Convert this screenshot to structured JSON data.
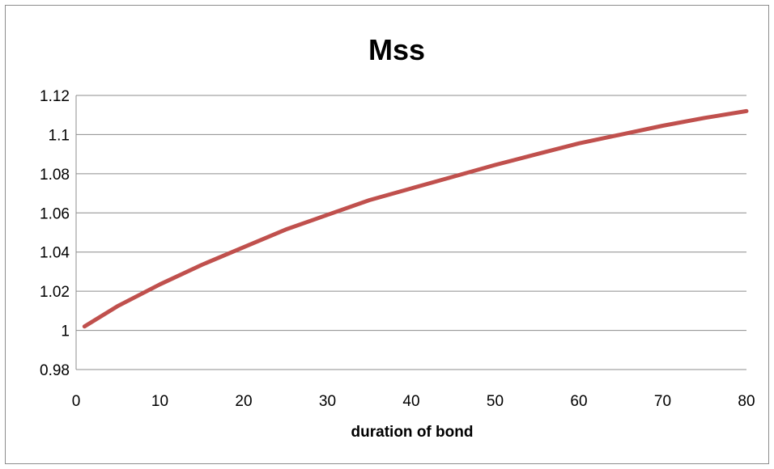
{
  "chart_data": {
    "type": "line",
    "title": "Mss",
    "xlabel": "duration of bond",
    "ylabel": "",
    "xlim": [
      0,
      80
    ],
    "ylim": [
      0.98,
      1.12
    ],
    "x_ticks": [
      0,
      10,
      20,
      30,
      40,
      50,
      60,
      70,
      80
    ],
    "x_tick_labels": [
      "0",
      "10",
      "20",
      "30",
      "40",
      "50",
      "60",
      "70",
      "80"
    ],
    "y_ticks": [
      0.98,
      1.0,
      1.02,
      1.04,
      1.06,
      1.08,
      1.1,
      1.12
    ],
    "y_tick_labels": [
      "0.98",
      "1",
      "1.02",
      "1.04",
      "1.06",
      "1.08",
      "1.1",
      "1.12"
    ],
    "grid": "horizontal",
    "legend": "none",
    "series": [
      {
        "color": "#c0504d",
        "x": [
          1,
          5,
          10,
          15,
          20,
          25,
          30,
          35,
          40,
          45,
          50,
          55,
          60,
          65,
          70,
          75,
          80
        ],
        "y": [
          1.002,
          1.0125,
          1.0235,
          1.0335,
          1.0425,
          1.0515,
          1.059,
          1.0665,
          1.0725,
          1.0785,
          1.0845,
          1.09,
          1.0955,
          1.1,
          1.1045,
          1.1085,
          1.112
        ]
      }
    ]
  }
}
